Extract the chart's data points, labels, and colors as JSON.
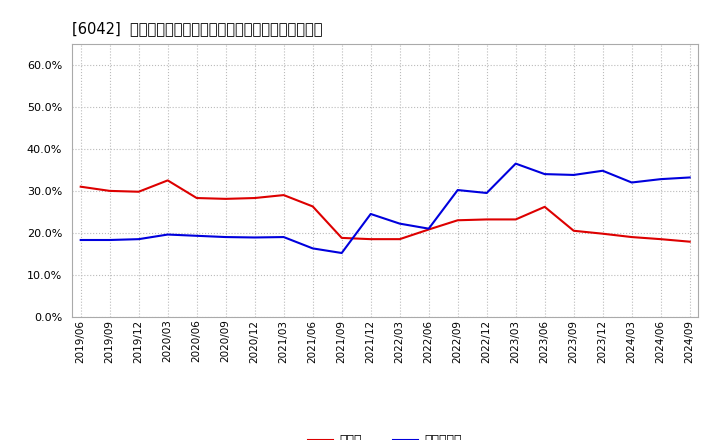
{
  "title": "[6042]  現預金、有利子負債の総資産に対する比率の推移",
  "legend_labels": [
    "現預金",
    "有利子負債"
  ],
  "line_colors": [
    "#dd0000",
    "#0000dd"
  ],
  "background_color": "#ffffff",
  "grid_color": "#bbbbbb",
  "ylim": [
    0.0,
    0.65
  ],
  "yticks": [
    0.0,
    0.1,
    0.2,
    0.3,
    0.4,
    0.5,
    0.6
  ],
  "dates": [
    "2019/06",
    "2019/09",
    "2019/12",
    "2020/03",
    "2020/06",
    "2020/09",
    "2020/12",
    "2021/03",
    "2021/06",
    "2021/09",
    "2021/12",
    "2022/03",
    "2022/06",
    "2022/09",
    "2022/12",
    "2023/03",
    "2023/06",
    "2023/09",
    "2023/12",
    "2024/03",
    "2024/06",
    "2024/09"
  ],
  "cash_values": [
    0.31,
    0.3,
    0.298,
    0.325,
    0.283,
    0.281,
    0.283,
    0.29,
    0.263,
    0.188,
    0.185,
    0.185,
    0.208,
    0.23,
    0.232,
    0.232,
    0.262,
    0.205,
    0.198,
    0.19,
    0.185,
    0.179
  ],
  "debt_values": [
    0.183,
    0.183,
    0.185,
    0.196,
    0.193,
    0.19,
    0.189,
    0.19,
    0.163,
    0.152,
    0.245,
    0.222,
    0.21,
    0.302,
    0.295,
    0.365,
    0.34,
    0.338,
    0.348,
    0.32,
    0.328,
    0.332
  ]
}
